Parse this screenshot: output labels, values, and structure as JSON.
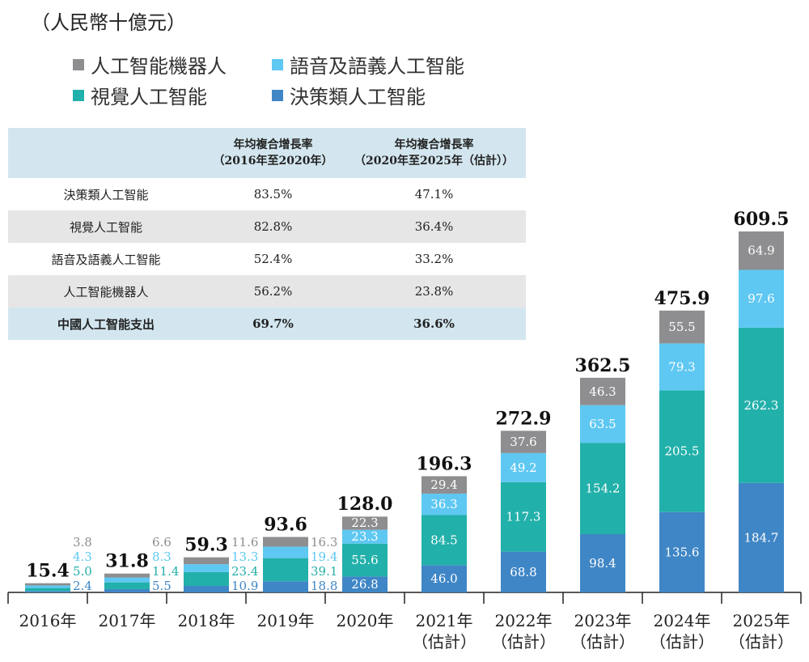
{
  "unit_label": "（人民幣十億元）",
  "table": {
    "headers": [
      "",
      "年均複合增長率\n（2016年至2020年）",
      "年均複合增長率\n（2020年至2025年（估計））"
    ],
    "rows": [
      [
        "決策類人工智能",
        "83.5%",
        "47.1%"
      ],
      [
        "視覺人工智能",
        "82.8%",
        "36.4%"
      ],
      [
        "語音及語義人工智能",
        "52.4%",
        "33.2%"
      ],
      [
        "人工智能機器人",
        "56.2%",
        "23.8%"
      ],
      [
        "中國人工智能支出",
        "69.7%",
        "36.6%"
      ]
    ]
  },
  "chart_data": {
    "type": "bar",
    "stacked": true,
    "categories": [
      "2016年",
      "2017年",
      "2018年",
      "2019年",
      "2020年",
      "2021年\n（估計）",
      "2022年\n（估計）",
      "2023年\n（估計）",
      "2024年\n（估計）",
      "2025年\n（估計）"
    ],
    "totals": [
      "15.4",
      "31.8",
      "59.3",
      "93.6",
      "128.0",
      "196.3",
      "272.9",
      "362.5",
      "475.9",
      "609.5"
    ],
    "ylim": [
      0,
      609.5
    ],
    "legend_placement": "top-left",
    "series": [
      {
        "name": "決策類人工智能",
        "color": "#3f86c6",
        "values": [
          2.4,
          5.5,
          10.9,
          18.8,
          26.8,
          46.0,
          68.8,
          98.4,
          135.6,
          184.7
        ]
      },
      {
        "name": "視覺人工智能",
        "color": "#22b0aa",
        "values": [
          5.0,
          11.4,
          23.4,
          39.1,
          55.6,
          84.5,
          117.3,
          154.2,
          205.5,
          262.3
        ]
      },
      {
        "name": "語音及語義人工智能",
        "color": "#5ec8f2",
        "values": [
          4.3,
          8.3,
          13.3,
          19.4,
          23.3,
          36.3,
          49.2,
          63.5,
          79.3,
          97.6
        ]
      },
      {
        "name": "人工智能機器人",
        "color": "#8e8e90",
        "values": [
          3.8,
          6.6,
          11.6,
          16.3,
          22.3,
          29.4,
          37.6,
          46.3,
          55.5,
          64.9
        ]
      }
    ],
    "legend_order": [
      3,
      2,
      1,
      0
    ]
  }
}
